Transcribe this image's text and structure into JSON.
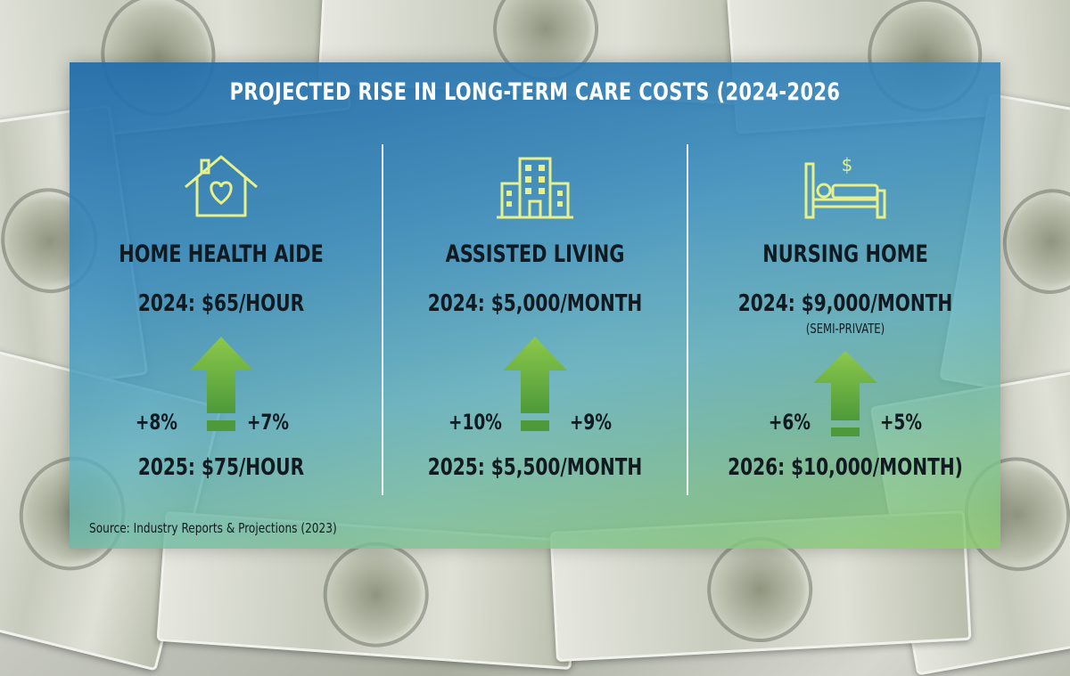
{
  "title": "PROJECTED RISE IN LONG-TERM CARE COSTS (2024-2026",
  "columns": [
    {
      "icon": "house-heart-icon",
      "name": "HOME HEALTH AIDE",
      "current": "2024: $65/HOUR",
      "note": "",
      "left_pct": "+8%",
      "right_pct": "+7%",
      "future": "2025: $75/HOUR"
    },
    {
      "icon": "building-icon",
      "name": "ASSISTED LIVING",
      "current": "2024: $5,000/MONTH",
      "note": "",
      "left_pct": "+10%",
      "right_pct": "+9%",
      "future": "2025: $5,500/MONTH"
    },
    {
      "icon": "bed-dollar-icon",
      "name": "NURSING HOME",
      "current": "2024: $9,000/MONTH",
      "note": "(SEMI-PRIVATE)",
      "left_pct": "+6%",
      "right_pct": "+5%",
      "future": "2026: $10,000/MONTH)"
    }
  ],
  "source": "Source: Industry Reports & Projections (2023)",
  "colors": {
    "icon": "#e7f08a",
    "arrow_top": "#8cc84b",
    "arrow_bottom": "#4e9a3a",
    "panel_top": "#226caa",
    "panel_bottom": "#8cc86e"
  }
}
